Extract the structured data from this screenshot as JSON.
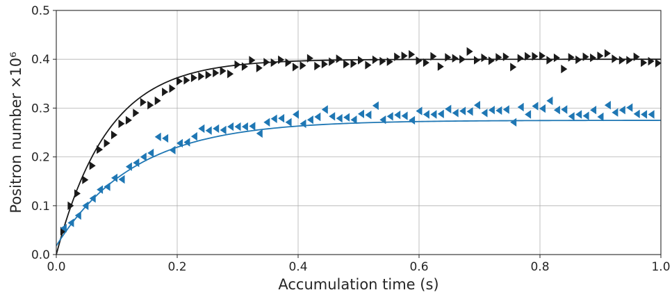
{
  "chart_data": {
    "type": "scatter",
    "xlabel": "Accumulation time (s)",
    "ylabel": "Positron number ×10⁶",
    "xlim": [
      0,
      1.0
    ],
    "ylim": [
      0,
      0.5
    ],
    "x_ticks": [
      0.0,
      0.2,
      0.4,
      0.6,
      0.8,
      1.0
    ],
    "y_ticks": [
      0.0,
      0.1,
      0.2,
      0.3,
      0.4,
      0.5
    ],
    "x_tick_labels": [
      "0.0",
      "0.2",
      "0.4",
      "0.6",
      "0.8",
      "1.0"
    ],
    "y_tick_labels": [
      "0.0",
      "0.1",
      "0.2",
      "0.3",
      "0.4",
      "0.5"
    ],
    "grid": true,
    "legend": "none",
    "series": [
      {
        "marker": "triangle-right",
        "color": "#1a1a1a",
        "fit": {
          "model": "saturating-exponential",
          "a": 0.4,
          "tau": 0.085,
          "x0": 0.0
        },
        "x": [
          0.012,
          0.024,
          0.035,
          0.048,
          0.06,
          0.072,
          0.084,
          0.096,
          0.108,
          0.12,
          0.132,
          0.144,
          0.156,
          0.168,
          0.18,
          0.192,
          0.204,
          0.216,
          0.228,
          0.24,
          0.252,
          0.264,
          0.276,
          0.288,
          0.3,
          0.312,
          0.324,
          0.336,
          0.348,
          0.36,
          0.372,
          0.384,
          0.396,
          0.408,
          0.42,
          0.432,
          0.444,
          0.456,
          0.468,
          0.48,
          0.492,
          0.504,
          0.516,
          0.528,
          0.54,
          0.552,
          0.564,
          0.576,
          0.588,
          0.6,
          0.612,
          0.624,
          0.636,
          0.648,
          0.66,
          0.672,
          0.684,
          0.696,
          0.708,
          0.72,
          0.732,
          0.744,
          0.756,
          0.768,
          0.78,
          0.792,
          0.804,
          0.816,
          0.828,
          0.84,
          0.852,
          0.864,
          0.876,
          0.888,
          0.9,
          0.912,
          0.924,
          0.936,
          0.948,
          0.96,
          0.972,
          0.984,
          0.996
        ],
        "y": [
          0.048,
          0.1,
          0.125,
          0.153,
          0.182,
          0.215,
          0.228,
          0.245,
          0.268,
          0.275,
          0.29,
          0.312,
          0.306,
          0.315,
          0.333,
          0.34,
          0.355,
          0.357,
          0.362,
          0.365,
          0.368,
          0.372,
          0.376,
          0.37,
          0.389,
          0.385,
          0.398,
          0.382,
          0.394,
          0.393,
          0.399,
          0.393,
          0.384,
          0.387,
          0.402,
          0.386,
          0.39,
          0.395,
          0.401,
          0.39,
          0.391,
          0.398,
          0.388,
          0.399,
          0.396,
          0.395,
          0.405,
          0.407,
          0.41,
          0.397,
          0.393,
          0.406,
          0.385,
          0.404,
          0.402,
          0.4,
          0.416,
          0.398,
          0.403,
          0.397,
          0.404,
          0.405,
          0.384,
          0.402,
          0.406,
          0.406,
          0.407,
          0.398,
          0.403,
          0.38,
          0.404,
          0.399,
          0.405,
          0.403,
          0.407,
          0.412,
          0.401,
          0.398,
          0.398,
          0.405,
          0.393,
          0.396,
          0.392
        ]
      },
      {
        "marker": "triangle-left",
        "color": "#1f77b4",
        "fit": {
          "model": "saturating-exponential",
          "a": 0.275,
          "tau": 0.13,
          "x0": 0.018
        },
        "x": [
          0.012,
          0.024,
          0.036,
          0.048,
          0.06,
          0.072,
          0.084,
          0.096,
          0.108,
          0.12,
          0.132,
          0.144,
          0.156,
          0.168,
          0.18,
          0.192,
          0.204,
          0.216,
          0.228,
          0.24,
          0.252,
          0.264,
          0.276,
          0.288,
          0.3,
          0.312,
          0.324,
          0.336,
          0.348,
          0.36,
          0.372,
          0.384,
          0.396,
          0.408,
          0.42,
          0.432,
          0.444,
          0.456,
          0.468,
          0.48,
          0.492,
          0.504,
          0.516,
          0.528,
          0.54,
          0.552,
          0.564,
          0.576,
          0.588,
          0.6,
          0.612,
          0.624,
          0.636,
          0.648,
          0.66,
          0.672,
          0.684,
          0.696,
          0.708,
          0.72,
          0.732,
          0.744,
          0.756,
          0.768,
          0.78,
          0.792,
          0.804,
          0.816,
          0.828,
          0.84,
          0.852,
          0.864,
          0.876,
          0.888,
          0.9,
          0.912,
          0.924,
          0.936,
          0.948,
          0.96,
          0.972,
          0.984
        ],
        "y": [
          0.054,
          0.065,
          0.08,
          0.1,
          0.115,
          0.133,
          0.139,
          0.157,
          0.154,
          0.18,
          0.188,
          0.2,
          0.208,
          0.241,
          0.238,
          0.214,
          0.228,
          0.23,
          0.242,
          0.258,
          0.254,
          0.258,
          0.255,
          0.262,
          0.262,
          0.262,
          0.263,
          0.248,
          0.271,
          0.278,
          0.279,
          0.271,
          0.287,
          0.268,
          0.276,
          0.282,
          0.297,
          0.283,
          0.279,
          0.281,
          0.276,
          0.288,
          0.286,
          0.305,
          0.276,
          0.283,
          0.286,
          0.284,
          0.275,
          0.294,
          0.287,
          0.287,
          0.288,
          0.298,
          0.29,
          0.294,
          0.293,
          0.306,
          0.29,
          0.296,
          0.295,
          0.297,
          0.271,
          0.302,
          0.287,
          0.304,
          0.299,
          0.315,
          0.296,
          0.297,
          0.283,
          0.287,
          0.284,
          0.296,
          0.282,
          0.306,
          0.291,
          0.296,
          0.301,
          0.288,
          0.287,
          0.287
        ]
      }
    ]
  }
}
